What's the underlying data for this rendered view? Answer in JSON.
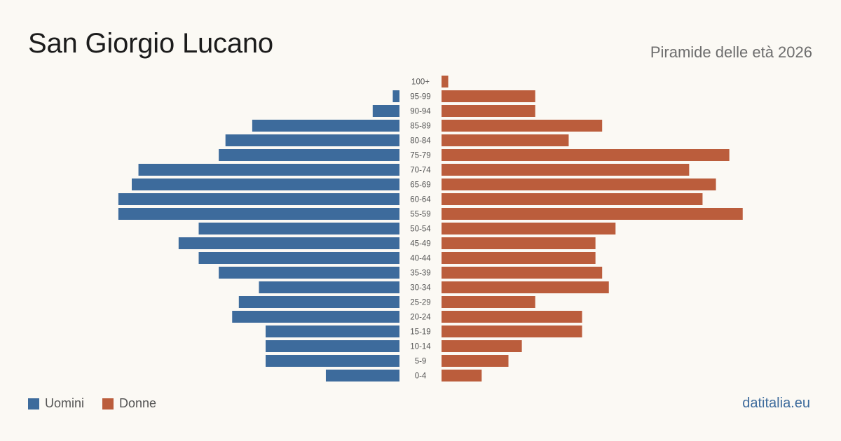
{
  "header": {
    "title": "San Giorgio Lucano",
    "subtitle": "Piramide delle età 2026"
  },
  "legend": {
    "men_label": "Uomini",
    "women_label": "Donne"
  },
  "footer": {
    "source": "datitalia.eu"
  },
  "colors": {
    "men": "#3d6b9c",
    "women": "#bb5d3c",
    "background": "#fbf9f4"
  },
  "chart_data": {
    "type": "bar",
    "orientation": "horizontal-pyramid",
    "categories": [
      "100+",
      "95-99",
      "90-94",
      "85-89",
      "80-84",
      "75-79",
      "70-74",
      "65-69",
      "60-64",
      "55-59",
      "50-54",
      "45-49",
      "40-44",
      "35-39",
      "30-34",
      "25-29",
      "20-24",
      "15-19",
      "10-14",
      "5-9",
      "0-4"
    ],
    "series": [
      {
        "name": "Uomini",
        "values": [
          0,
          1,
          4,
          22,
          26,
          27,
          39,
          40,
          42,
          42,
          30,
          33,
          30,
          27,
          21,
          24,
          25,
          20,
          20,
          20,
          11
        ]
      },
      {
        "name": "Donne",
        "values": [
          1,
          14,
          14,
          24,
          19,
          43,
          37,
          41,
          39,
          45,
          26,
          23,
          23,
          24,
          25,
          14,
          21,
          21,
          12,
          10,
          6
        ]
      }
    ],
    "legend_position": "bottom-left",
    "grid": false
  }
}
